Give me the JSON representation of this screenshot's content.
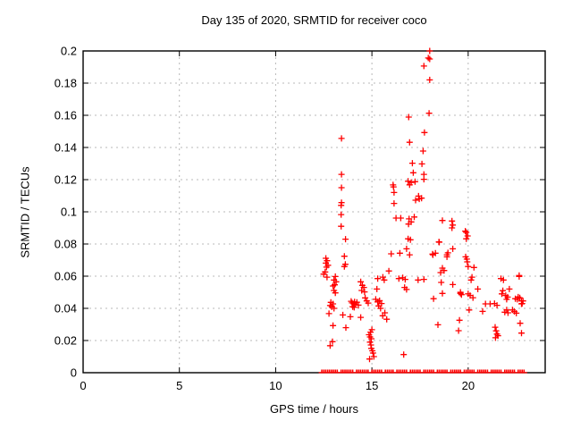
{
  "window": {
    "title": "Day 135 of 2020, SRMTID for receiver coco"
  },
  "chart_data": {
    "type": "scatter",
    "title": "Day 135 of 2020, SRMTID for receiver coco",
    "xlabel": "GPS time / hours",
    "ylabel": "SRMTID / TECUs",
    "xlim": [
      0,
      24
    ],
    "ylim": [
      0,
      0.2
    ],
    "xticks": [
      0,
      5,
      10,
      15,
      20
    ],
    "xtick_labels": [
      "0",
      "5",
      "10",
      "15",
      "20"
    ],
    "yticks": [
      0,
      0.02,
      0.04,
      0.06,
      0.08,
      0.1,
      0.12,
      0.14,
      0.16,
      0.18,
      0.2
    ],
    "ytick_labels": [
      "0",
      "0.02",
      "0.04",
      "0.06",
      "0.08",
      "0.1",
      "0.12",
      "0.14",
      "0.16",
      "0.18",
      "0.2"
    ],
    "grid": true,
    "legend_position": "none",
    "marker": "plus",
    "colors": {
      "marker": "#ff0000",
      "grid": "#b8b8b8",
      "axis": "#000000",
      "text": "#000000",
      "background": "#ffffff"
    },
    "series": [
      {
        "name": "SRMTID",
        "points": [
          [
            12.49,
            0.0613
          ],
          [
            12.57,
            0.0626
          ],
          [
            12.61,
            0.0711
          ],
          [
            12.61,
            0.0681
          ],
          [
            12.64,
            0.0656
          ],
          [
            12.67,
            0.0696
          ],
          [
            12.72,
            0.0668
          ],
          [
            12.67,
            0.0594
          ],
          [
            12.77,
            0.0367
          ],
          [
            12.83,
            0.0418
          ],
          [
            12.83,
            0.0168
          ],
          [
            12.87,
            0.0437
          ],
          [
            12.92,
            0.0409
          ],
          [
            12.95,
            0.0193
          ],
          [
            12.98,
            0.0539
          ],
          [
            12.98,
            0.0428
          ],
          [
            12.98,
            0.0293
          ],
          [
            13.03,
            0.0576
          ],
          [
            13.03,
            0.0511
          ],
          [
            13.03,
            0.04
          ],
          [
            13.07,
            0.0546
          ],
          [
            13.1,
            0.0598
          ],
          [
            13.1,
            0.0496
          ],
          [
            13.14,
            0.0565
          ],
          [
            13.42,
            0.1456
          ],
          [
            13.42,
            0.1233
          ],
          [
            13.42,
            0.115
          ],
          [
            13.42,
            0.1057
          ],
          [
            13.4,
            0.104
          ],
          [
            13.4,
            0.0983
          ],
          [
            13.4,
            0.091
          ],
          [
            13.49,
            0.0359
          ],
          [
            13.57,
            0.0724
          ],
          [
            13.57,
            0.066
          ],
          [
            13.62,
            0.0674
          ],
          [
            13.63,
            0.083
          ],
          [
            13.65,
            0.028
          ],
          [
            13.88,
            0.0348
          ],
          [
            13.92,
            0.0444
          ],
          [
            13.97,
            0.0434
          ],
          [
            14.0,
            0.041
          ],
          [
            14.05,
            0.0428
          ],
          [
            14.08,
            0.0406
          ],
          [
            14.1,
            0.044
          ],
          [
            14.15,
            0.0422
          ],
          [
            14.22,
            0.0438
          ],
          [
            14.3,
            0.042
          ],
          [
            14.42,
            0.0565
          ],
          [
            14.42,
            0.0344
          ],
          [
            14.47,
            0.0511
          ],
          [
            14.5,
            0.0543
          ],
          [
            14.58,
            0.053
          ],
          [
            14.62,
            0.0502
          ],
          [
            14.65,
            0.0465
          ],
          [
            14.73,
            0.0446
          ],
          [
            14.81,
            0.0433
          ],
          [
            14.85,
            0.0236
          ],
          [
            14.88,
            0.0085
          ],
          [
            14.9,
            0.0222
          ],
          [
            14.9,
            0.019
          ],
          [
            14.93,
            0.0252
          ],
          [
            14.95,
            0.0172
          ],
          [
            14.97,
            0.0211
          ],
          [
            14.97,
            0.0151
          ],
          [
            15.0,
            0.0267
          ],
          [
            15.02,
            0.0136
          ],
          [
            15.06,
            0.0122
          ],
          [
            15.1,
            0.01
          ],
          [
            15.2,
            0.0456
          ],
          [
            15.26,
            0.052
          ],
          [
            15.3,
            0.0585
          ],
          [
            15.3,
            0.044
          ],
          [
            15.35,
            0.0415
          ],
          [
            15.4,
            0.0448
          ],
          [
            15.45,
            0.04
          ],
          [
            15.5,
            0.043
          ],
          [
            15.56,
            0.0354
          ],
          [
            15.57,
            0.0594
          ],
          [
            15.64,
            0.0576
          ],
          [
            15.67,
            0.0372
          ],
          [
            15.77,
            0.0332
          ],
          [
            15.88,
            0.0632
          ],
          [
            16.0,
            0.0739
          ],
          [
            16.1,
            0.1167
          ],
          [
            16.12,
            0.1155
          ],
          [
            16.15,
            0.112
          ],
          [
            16.15,
            0.1052
          ],
          [
            16.25,
            0.0961
          ],
          [
            16.4,
            0.0585
          ],
          [
            16.45,
            0.0743
          ],
          [
            16.5,
            0.0961
          ],
          [
            16.6,
            0.059
          ],
          [
            16.65,
            0.0113
          ],
          [
            16.7,
            0.053
          ],
          [
            16.73,
            0.058
          ],
          [
            16.8,
            0.0517
          ],
          [
            16.8,
            0.077
          ],
          [
            16.88,
            0.119
          ],
          [
            16.88,
            0.0832
          ],
          [
            16.9,
            0.0924
          ],
          [
            16.91,
            0.1589
          ],
          [
            16.93,
            0.0956
          ],
          [
            16.96,
            0.1432
          ],
          [
            16.96,
            0.1168
          ],
          [
            16.96,
            0.0733
          ],
          [
            17.0,
            0.0826
          ],
          [
            17.04,
            0.1183
          ],
          [
            17.04,
            0.0937
          ],
          [
            17.1,
            0.1302
          ],
          [
            17.15,
            0.1243
          ],
          [
            17.2,
            0.0968
          ],
          [
            17.24,
            0.1187
          ],
          [
            17.27,
            0.1072
          ],
          [
            17.4,
            0.0576
          ],
          [
            17.42,
            0.1098
          ],
          [
            17.46,
            0.108
          ],
          [
            17.58,
            0.1085
          ],
          [
            17.6,
            0.1298
          ],
          [
            17.66,
            0.1378
          ],
          [
            17.7,
            0.1906
          ],
          [
            17.7,
            0.1233
          ],
          [
            17.7,
            0.1202
          ],
          [
            17.7,
            0.058
          ],
          [
            17.73,
            0.1493
          ],
          [
            17.93,
            0.1956
          ],
          [
            17.97,
            0.1613
          ],
          [
            18.0,
            0.2
          ],
          [
            18.0,
            0.195
          ],
          [
            18.0,
            0.182
          ],
          [
            18.15,
            0.0737
          ],
          [
            18.17,
            0.0733
          ],
          [
            18.2,
            0.046
          ],
          [
            18.3,
            0.0743
          ],
          [
            18.43,
            0.0298
          ],
          [
            18.48,
            0.0813
          ],
          [
            18.5,
            0.0811
          ],
          [
            18.57,
            0.0622
          ],
          [
            18.6,
            0.0561
          ],
          [
            18.66,
            0.0946
          ],
          [
            18.66,
            0.065
          ],
          [
            18.66,
            0.0493
          ],
          [
            18.75,
            0.0635
          ],
          [
            18.9,
            0.0733
          ],
          [
            18.9,
            0.072
          ],
          [
            18.95,
            0.0745
          ],
          [
            19.16,
            0.0943
          ],
          [
            19.16,
            0.09
          ],
          [
            19.2,
            0.0918
          ],
          [
            19.2,
            0.077
          ],
          [
            19.2,
            0.0548
          ],
          [
            19.5,
            0.0261
          ],
          [
            19.55,
            0.0326
          ],
          [
            19.6,
            0.05
          ],
          [
            19.6,
            0.0493
          ],
          [
            19.65,
            0.0485
          ],
          [
            19.87,
            0.072
          ],
          [
            19.85,
            0.088
          ],
          [
            19.9,
            0.0872
          ],
          [
            19.9,
            0.0832
          ],
          [
            19.93,
            0.0706
          ],
          [
            19.95,
            0.0689
          ],
          [
            19.97,
            0.085
          ],
          [
            20.0,
            0.066
          ],
          [
            20.0,
            0.049
          ],
          [
            20.05,
            0.039
          ],
          [
            20.1,
            0.048
          ],
          [
            20.15,
            0.0576
          ],
          [
            20.2,
            0.0594
          ],
          [
            20.25,
            0.0466
          ],
          [
            20.3,
            0.0654
          ],
          [
            20.5,
            0.052
          ],
          [
            20.75,
            0.0381
          ],
          [
            20.9,
            0.0428
          ],
          [
            21.14,
            0.0428
          ],
          [
            21.37,
            0.043
          ],
          [
            21.4,
            0.0283
          ],
          [
            21.42,
            0.0217
          ],
          [
            21.45,
            0.026
          ],
          [
            21.5,
            0.0419
          ],
          [
            21.5,
            0.024
          ],
          [
            21.55,
            0.023
          ],
          [
            21.7,
            0.0585
          ],
          [
            21.75,
            0.049
          ],
          [
            21.8,
            0.051
          ],
          [
            21.83,
            0.0576
          ],
          [
            21.9,
            0.0376
          ],
          [
            21.95,
            0.048
          ],
          [
            22.0,
            0.0456
          ],
          [
            22.0,
            0.039
          ],
          [
            22.05,
            0.047
          ],
          [
            22.07,
            0.0372
          ],
          [
            22.14,
            0.052
          ],
          [
            22.3,
            0.039
          ],
          [
            22.4,
            0.038
          ],
          [
            22.45,
            0.046
          ],
          [
            22.5,
            0.037
          ],
          [
            22.55,
            0.0456
          ],
          [
            22.6,
            0.047
          ],
          [
            22.65,
            0.0604
          ],
          [
            22.65,
            0.0598
          ],
          [
            22.68,
            0.0465
          ],
          [
            22.7,
            0.0307
          ],
          [
            22.77,
            0.0446
          ],
          [
            22.77,
            0.0428
          ],
          [
            22.77,
            0.0246
          ],
          [
            22.8,
            0.043
          ],
          [
            22.85,
            0.0446
          ]
        ],
        "zero_band_y": 0,
        "zero_band_x": [
          12.4,
          12.5,
          12.6,
          12.7,
          12.8,
          12.9,
          13.0,
          13.1,
          13.2,
          13.4,
          13.5,
          13.6,
          13.7,
          13.8,
          13.9,
          14.0,
          14.2,
          14.3,
          14.4,
          14.5,
          14.6,
          14.7,
          14.8,
          15.0,
          15.1,
          15.2,
          15.3,
          15.4,
          15.5,
          15.7,
          15.8,
          15.9,
          16.0,
          16.1,
          16.3,
          16.4,
          16.5,
          16.6,
          16.7,
          16.8,
          17.0,
          17.1,
          17.2,
          17.3,
          17.4,
          17.5,
          17.7,
          17.8,
          17.9,
          18.0,
          18.1,
          18.2,
          18.4,
          18.5,
          18.6,
          18.7,
          18.8,
          18.9,
          19.1,
          19.2,
          19.3,
          19.4,
          19.5,
          19.6,
          19.8,
          19.9,
          20.0,
          20.1,
          20.2,
          20.3,
          20.5,
          20.6,
          20.7,
          20.8,
          20.9,
          21.0,
          21.2,
          21.3,
          21.4,
          21.5,
          21.6,
          21.7,
          21.9,
          22.0,
          22.1,
          22.2,
          22.3,
          22.4,
          22.6,
          22.7,
          22.8,
          22.9
        ]
      }
    ]
  }
}
